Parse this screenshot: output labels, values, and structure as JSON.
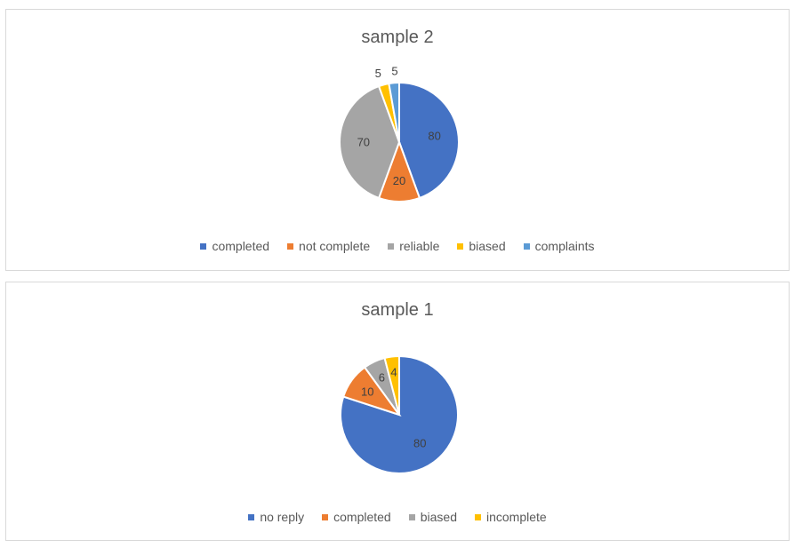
{
  "chart_data": [
    {
      "type": "pie",
      "title": "sample 2",
      "categories": [
        "completed",
        "not complete",
        "reliable",
        "biased",
        "complaints"
      ],
      "values": [
        80,
        20,
        70,
        5,
        5
      ],
      "colors": [
        "#4472c4",
        "#ed7d31",
        "#a5a5a5",
        "#ffc000",
        "#5b9bd5"
      ],
      "data_labels": [
        "80",
        "20",
        "70",
        "5",
        "5"
      ],
      "legend": "bottom"
    },
    {
      "type": "pie",
      "title": "sample 1",
      "categories": [
        "no reply",
        "completed",
        "biased",
        "incomplete"
      ],
      "values": [
        80,
        10,
        6,
        4
      ],
      "colors": [
        "#4472c4",
        "#ed7d31",
        "#a5a5a5",
        "#ffc000"
      ],
      "data_labels": [
        "80",
        "10",
        "6",
        "4"
      ],
      "legend": "bottom"
    }
  ]
}
